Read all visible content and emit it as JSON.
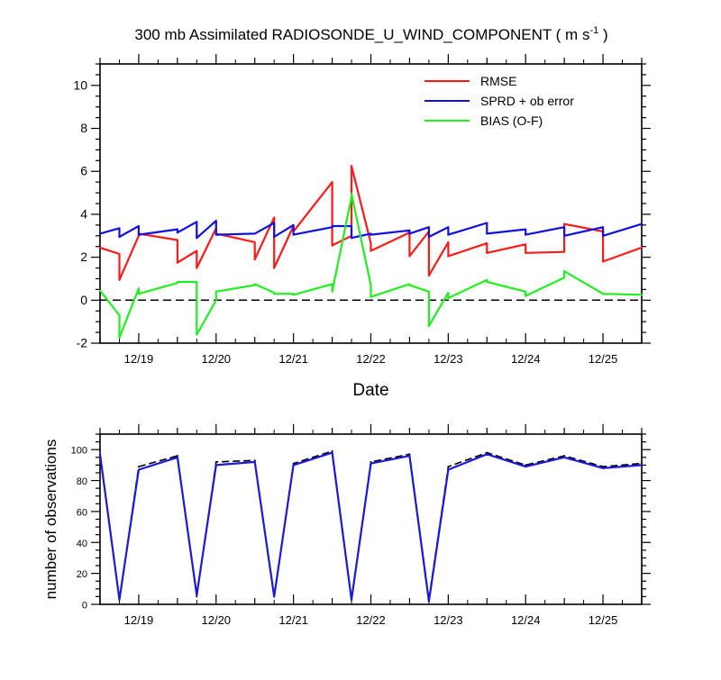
{
  "title": {
    "prefix": "300 mb Assimilated RADIOSONDE_U_WIND_COMPONENT ( m s",
    "superscript": "-1",
    "suffix": " )"
  },
  "colors": {
    "rmse": "#ff1a1a",
    "sprd": "#1010e0",
    "bias": "#22ee22",
    "axis": "#000000",
    "nobs_black": "#000000",
    "nobs_blue": "#1a1ad8"
  },
  "chart_data": [
    {
      "type": "line",
      "title": "300 mb Assimilated RADIOSONDE_U_WIND_COMPONENT ( m s-1 )",
      "xlabel": "Date",
      "ylabel": "",
      "xlim": [
        18.5,
        25.5
      ],
      "ylim": [
        -2,
        11
      ],
      "x_ticks": [
        19,
        20,
        21,
        22,
        23,
        24,
        25
      ],
      "x_tick_labels": [
        "12/19",
        "12/20",
        "12/21",
        "12/22",
        "12/23",
        "12/24",
        "12/25"
      ],
      "y_ticks": [
        -2,
        0,
        2,
        4,
        6,
        8,
        10
      ],
      "y_tick_labels": [
        "-2",
        "0",
        "2",
        "4",
        "6",
        "8",
        "10"
      ],
      "zero_line": true,
      "legend_position": "top-right",
      "legend": [
        "RMSE",
        "SPRD + ob error",
        "BIAS (O-F)"
      ],
      "x": [
        18.5,
        18.75,
        19.0,
        19.5,
        19.75,
        20.0,
        20.5,
        20.75,
        21.0,
        21.5,
        21.75,
        22.0,
        22.5,
        22.75,
        23.0,
        23.5,
        24.0,
        24.5,
        25.0,
        25.5
      ],
      "series": [
        {
          "name": "RMSE",
          "values": [
            2.45,
            0.95,
            3.1,
            1.75,
            1.5,
            3.1,
            1.9,
            1.5,
            3.2,
            2.55,
            6.25,
            2.3,
            2.05,
            1.15,
            2.05,
            2.2,
            2.2,
            3.55,
            1.8,
            2.45
          ]
        },
        {
          "name": "SPRD + ob error",
          "values": [
            3.1,
            2.95,
            3.05,
            3.15,
            2.9,
            3.05,
            3.1,
            2.95,
            3.05,
            3.45,
            2.9,
            3.05,
            3.1,
            2.95,
            3.05,
            3.1,
            3.05,
            3.0,
            3.0,
            3.55
          ]
        },
        {
          "name": "BIAS (O-F)",
          "values": [
            0.45,
            -1.75,
            0.3,
            0.85,
            -1.6,
            0.4,
            0.75,
            0.3,
            0.25,
            0.4,
            4.95,
            0.15,
            0.7,
            -1.2,
            0.1,
            0.85,
            0.2,
            1.35,
            0.3,
            0.25
          ]
        }
      ],
      "segment_ends": {
        "RMSE": [
          2.15,
          3.0,
          2.8,
          2.3,
          3.35,
          2.7,
          3.85,
          3.45,
          5.5,
          3.0,
          2.65,
          3.15,
          3.2,
          2.7,
          2.65,
          2.6,
          2.25,
          3.2
        ],
        "SPRD + ob error": [
          3.35,
          3.45,
          3.3,
          3.65,
          3.7,
          3.1,
          3.6,
          3.5,
          3.4,
          3.45,
          3.1,
          3.25,
          3.4,
          3.4,
          3.6,
          3.3,
          3.4,
          3.4
        ],
        "BIAS (O-F)": [
          -0.7,
          0.55,
          0.8,
          0.85,
          0.0,
          0.7,
          0.35,
          0.3,
          0.75,
          4.8,
          0.7,
          0.75,
          0.4,
          0.35,
          0.95,
          0.4,
          1.05,
          0.3
        ]
      }
    },
    {
      "type": "line",
      "ylabel": "number of observations",
      "xlim": [
        18.5,
        25.5
      ],
      "ylim": [
        0,
        110
      ],
      "x_ticks": [
        19,
        20,
        21,
        22,
        23,
        24,
        25
      ],
      "x_tick_labels": [
        "12/19",
        "12/20",
        "12/21",
        "12/22",
        "12/23",
        "12/24",
        "12/25"
      ],
      "y_ticks": [
        0,
        20,
        40,
        60,
        80,
        100
      ],
      "y_tick_labels": [
        "0",
        "20",
        "40",
        "60",
        "80",
        "100"
      ],
      "x": [
        18.5,
        18.75,
        19.0,
        19.5,
        19.75,
        20.0,
        20.5,
        20.75,
        21.0,
        21.5,
        21.75,
        22.0,
        22.5,
        22.75,
        23.0,
        23.5,
        24.0,
        24.5,
        25.0,
        25.5
      ],
      "series": [
        {
          "name": "",
          "style": "dashed",
          "values": [
            97,
            3,
            89,
            96,
            5,
            92,
            93,
            5,
            91,
            99,
            3,
            92,
            97,
            3,
            89,
            98,
            90,
            96,
            89,
            91
          ]
        },
        {
          "name": "",
          "style": "solid",
          "values": [
            97,
            3,
            87,
            95,
            6,
            90,
            92,
            5,
            90,
            98,
            3,
            91,
            96,
            2,
            87,
            97,
            89,
            95,
            88,
            90
          ]
        }
      ]
    }
  ]
}
